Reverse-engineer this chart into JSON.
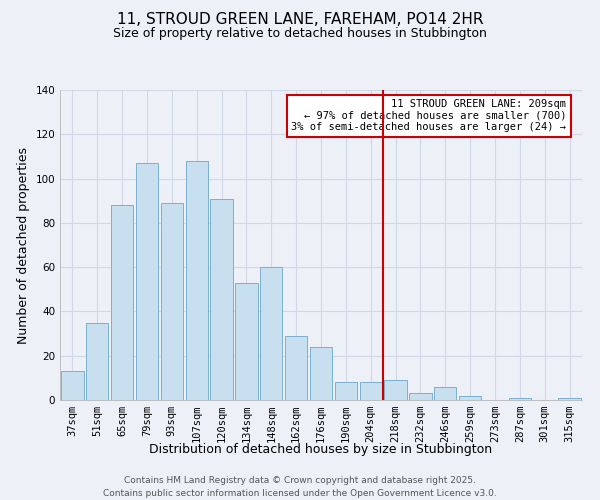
{
  "title": "11, STROUD GREEN LANE, FAREHAM, PO14 2HR",
  "subtitle": "Size of property relative to detached houses in Stubbington",
  "xlabel": "Distribution of detached houses by size in Stubbington",
  "ylabel": "Number of detached properties",
  "bar_labels": [
    "37sqm",
    "51sqm",
    "65sqm",
    "79sqm",
    "93sqm",
    "107sqm",
    "120sqm",
    "134sqm",
    "148sqm",
    "162sqm",
    "176sqm",
    "190sqm",
    "204sqm",
    "218sqm",
    "232sqm",
    "246sqm",
    "259sqm",
    "273sqm",
    "287sqm",
    "301sqm",
    "315sqm"
  ],
  "bar_heights": [
    13,
    35,
    88,
    107,
    89,
    108,
    91,
    53,
    60,
    29,
    24,
    8,
    8,
    9,
    3,
    6,
    2,
    0,
    1,
    0,
    1
  ],
  "bar_color": "#c8dff0",
  "bar_edge_color": "#7ab0d0",
  "grid_color": "#d0d8e8",
  "vline_x_index": 13,
  "vline_color": "#cc0000",
  "annotation_title": "11 STROUD GREEN LANE: 209sqm",
  "annotation_line1": "← 97% of detached houses are smaller (700)",
  "annotation_line2": "3% of semi-detached houses are larger (24) →",
  "annotation_box_edge": "#cc0000",
  "annotation_box_face": "#ffffff",
  "ylim": [
    0,
    140
  ],
  "yticks": [
    0,
    20,
    40,
    60,
    80,
    100,
    120,
    140
  ],
  "footer_line1": "Contains HM Land Registry data © Crown copyright and database right 2025.",
  "footer_line2": "Contains public sector information licensed under the Open Government Licence v3.0.",
  "bg_color": "#eef0f8",
  "title_fontsize": 11,
  "subtitle_fontsize": 9,
  "axis_label_fontsize": 9,
  "tick_fontsize": 7.5,
  "footer_fontsize": 6.5,
  "annotation_fontsize": 7.5
}
